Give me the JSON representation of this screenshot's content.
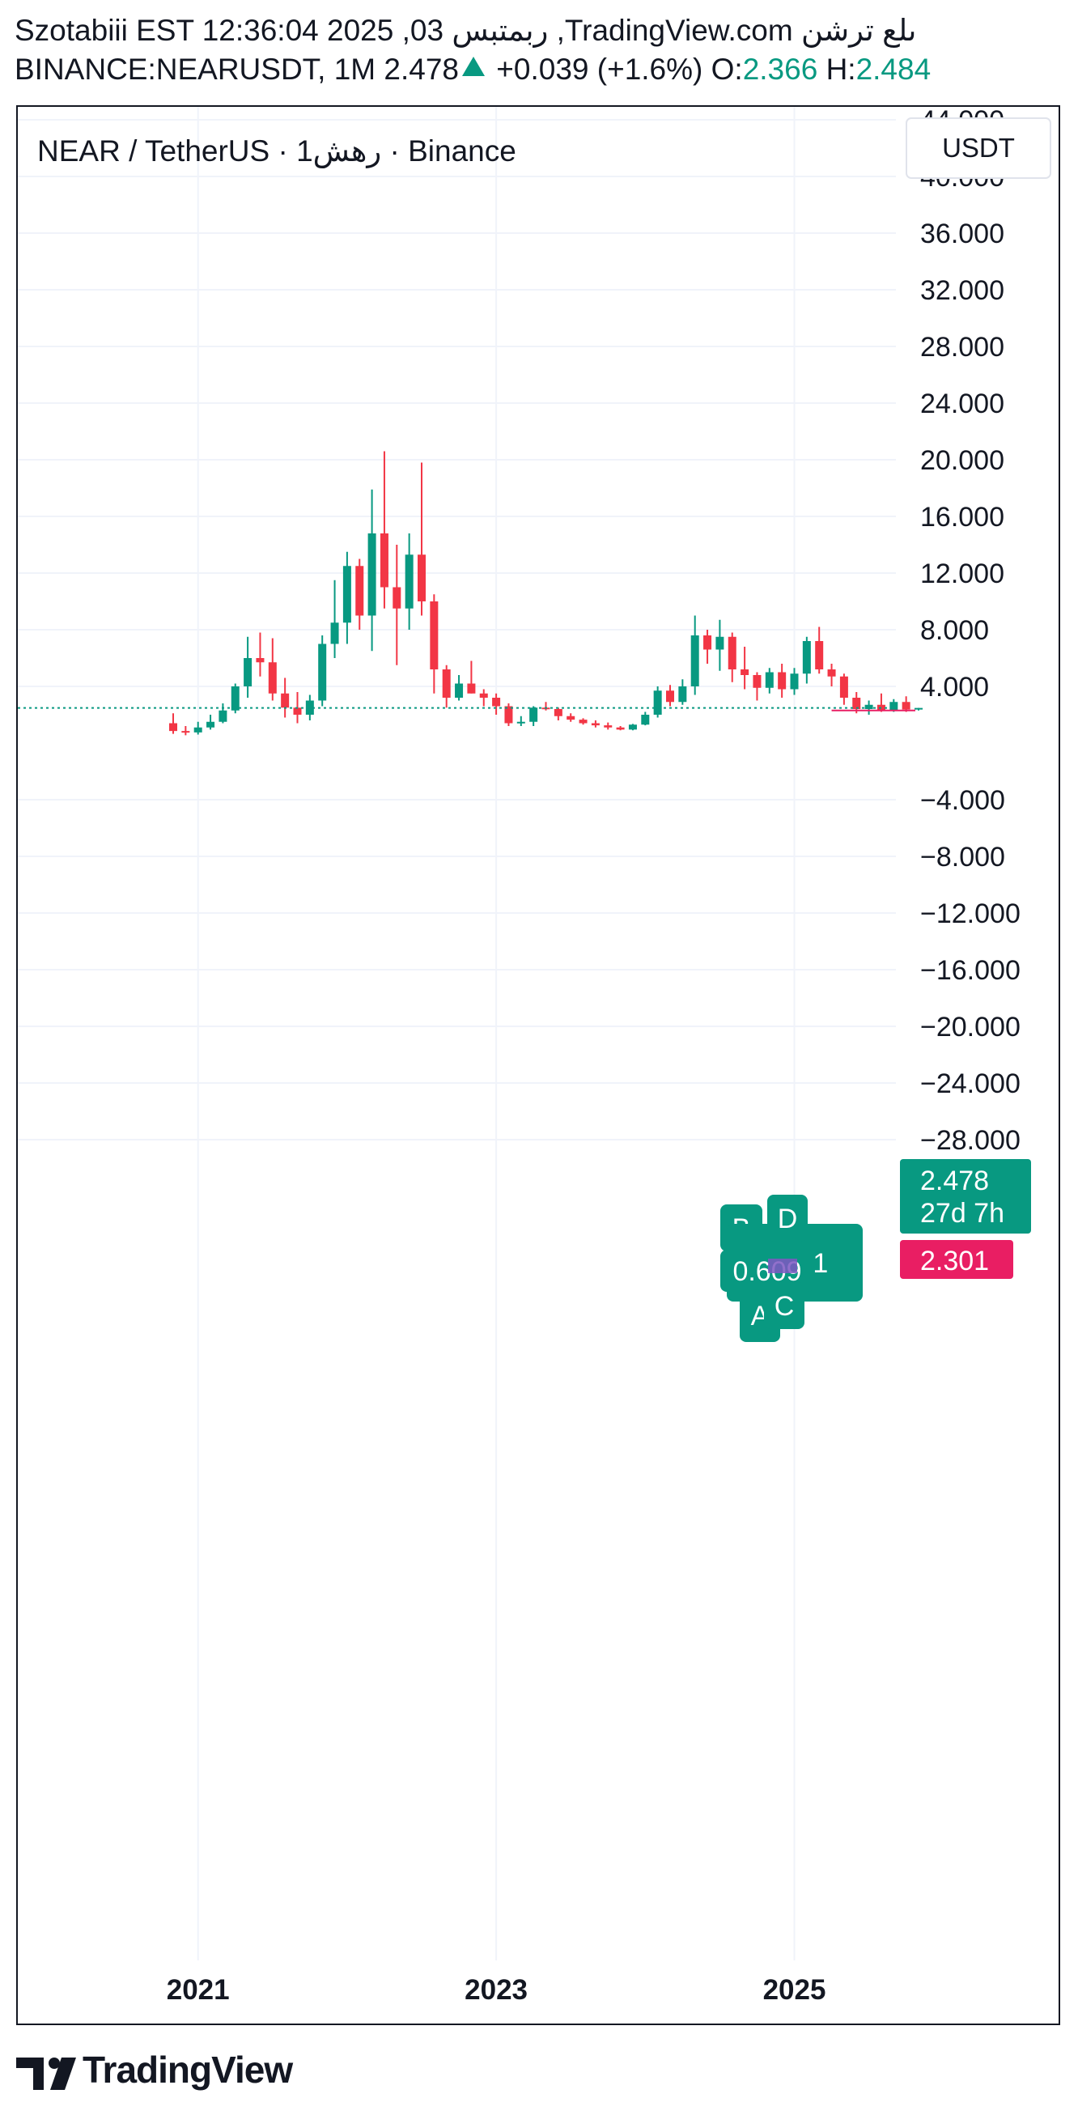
{
  "header": {
    "line1": "Szotabiii EST 12:36:04 2025 ,03 ربمتبس ,TradingView.com ىلع ترشن",
    "symbol": "BINANCE:NEARUSDT, 1M",
    "last": "2.478",
    "change": "+0.039 (+1.6%)",
    "open_label": "O:",
    "open": "2.366",
    "high_label": "H:",
    "high": "2.484"
  },
  "legend": {
    "title": "NEAR / TetherUS · 1رهش · Binance"
  },
  "currency_button": "USDT",
  "footer": {
    "brand": "TradingView"
  },
  "colors": {
    "up": "#089981",
    "down": "#F23645",
    "grid": "#F0F3FA",
    "text": "#131722",
    "pink": "#E91E63"
  },
  "chart_data": {
    "type": "candlestick",
    "y_ticks": [
      "44.000",
      "40.000",
      "36.000",
      "32.000",
      "28.000",
      "24.000",
      "20.000",
      "16.000",
      "12.000",
      "8.000",
      "4.000",
      "−4.000",
      "−8.000",
      "−12.000",
      "−16.000",
      "−20.000",
      "−24.000",
      "−28.000"
    ],
    "y_tick_values": [
      44,
      40,
      36,
      32,
      28,
      24,
      20,
      16,
      12,
      8,
      4,
      -4,
      -8,
      -12,
      -16,
      -20,
      -24,
      -28
    ],
    "x_labels": [
      "2021",
      "2023",
      "2025"
    ],
    "ylim": [
      -30.5,
      45
    ],
    "last_price": {
      "value": "2.478",
      "countdown": "27d 7h"
    },
    "pink_level": {
      "value": "2.301"
    },
    "overlay_labels": {
      "d": "D",
      "value1": "1.911",
      "value2": "0.609",
      "a": "A",
      "c": "C",
      "b": "B"
    },
    "candles": [
      {
        "o": 1.4,
        "h": 2.1,
        "l": 0.65,
        "c": 0.85
      },
      {
        "o": 0.85,
        "h": 1.2,
        "l": 0.55,
        "c": 0.75
      },
      {
        "o": 0.75,
        "h": 1.5,
        "l": 0.6,
        "c": 1.1
      },
      {
        "o": 1.1,
        "h": 2.0,
        "l": 0.95,
        "c": 1.5
      },
      {
        "o": 1.5,
        "h": 2.8,
        "l": 1.4,
        "c": 2.3
      },
      {
        "o": 2.3,
        "h": 4.2,
        "l": 2.1,
        "c": 4.0
      },
      {
        "o": 4.0,
        "h": 7.5,
        "l": 3.2,
        "c": 6.0
      },
      {
        "o": 6.0,
        "h": 7.8,
        "l": 4.7,
        "c": 5.7
      },
      {
        "o": 5.7,
        "h": 7.4,
        "l": 3.0,
        "c": 3.5
      },
      {
        "o": 3.5,
        "h": 4.6,
        "l": 1.8,
        "c": 2.5
      },
      {
        "o": 2.5,
        "h": 3.6,
        "l": 1.4,
        "c": 2.0
      },
      {
        "o": 2.0,
        "h": 3.4,
        "l": 1.6,
        "c": 3.0
      },
      {
        "o": 3.0,
        "h": 7.6,
        "l": 2.6,
        "c": 7.0
      },
      {
        "o": 7.0,
        "h": 11.5,
        "l": 6.0,
        "c": 8.5
      },
      {
        "o": 8.5,
        "h": 13.5,
        "l": 7.0,
        "c": 12.5
      },
      {
        "o": 12.5,
        "h": 13.0,
        "l": 8.0,
        "c": 9.0
      },
      {
        "o": 9.0,
        "h": 17.9,
        "l": 6.5,
        "c": 14.8
      },
      {
        "o": 14.8,
        "h": 20.6,
        "l": 9.5,
        "c": 11.0
      },
      {
        "o": 11.0,
        "h": 14.0,
        "l": 5.5,
        "c": 9.5
      },
      {
        "o": 9.5,
        "h": 14.8,
        "l": 8.0,
        "c": 13.3
      },
      {
        "o": 13.3,
        "h": 19.8,
        "l": 9.0,
        "c": 10.0
      },
      {
        "o": 10.0,
        "h": 10.5,
        "l": 3.5,
        "c": 5.2
      },
      {
        "o": 5.2,
        "h": 5.5,
        "l": 2.5,
        "c": 3.2
      },
      {
        "o": 3.2,
        "h": 4.8,
        "l": 3.0,
        "c": 4.2
      },
      {
        "o": 4.2,
        "h": 5.8,
        "l": 3.5,
        "c": 3.5
      },
      {
        "o": 3.5,
        "h": 3.8,
        "l": 2.6,
        "c": 3.2
      },
      {
        "o": 3.2,
        "h": 3.5,
        "l": 2.0,
        "c": 2.6
      },
      {
        "o": 2.6,
        "h": 2.8,
        "l": 1.2,
        "c": 1.4
      },
      {
        "o": 1.4,
        "h": 1.9,
        "l": 1.2,
        "c": 1.5
      },
      {
        "o": 1.5,
        "h": 2.6,
        "l": 1.2,
        "c": 2.5
      },
      {
        "o": 2.5,
        "h": 2.9,
        "l": 2.3,
        "c": 2.4
      },
      {
        "o": 2.4,
        "h": 2.5,
        "l": 1.6,
        "c": 1.9
      },
      {
        "o": 1.9,
        "h": 2.1,
        "l": 1.5,
        "c": 1.65
      },
      {
        "o": 1.65,
        "h": 1.75,
        "l": 1.3,
        "c": 1.4
      },
      {
        "o": 1.4,
        "h": 1.6,
        "l": 1.1,
        "c": 1.25
      },
      {
        "o": 1.25,
        "h": 1.45,
        "l": 0.95,
        "c": 1.1
      },
      {
        "o": 1.1,
        "h": 1.2,
        "l": 0.9,
        "c": 0.95
      },
      {
        "o": 0.95,
        "h": 1.35,
        "l": 0.9,
        "c": 1.3
      },
      {
        "o": 1.3,
        "h": 2.2,
        "l": 1.25,
        "c": 2.0
      },
      {
        "o": 2.0,
        "h": 4.0,
        "l": 1.8,
        "c": 3.7
      },
      {
        "o": 3.7,
        "h": 4.1,
        "l": 2.6,
        "c": 2.9
      },
      {
        "o": 2.9,
        "h": 4.5,
        "l": 2.7,
        "c": 4.0
      },
      {
        "o": 4.0,
        "h": 9.0,
        "l": 3.4,
        "c": 7.6
      },
      {
        "o": 7.6,
        "h": 8.0,
        "l": 5.6,
        "c": 6.6
      },
      {
        "o": 6.6,
        "h": 8.7,
        "l": 5.1,
        "c": 7.5
      },
      {
        "o": 7.5,
        "h": 7.8,
        "l": 4.3,
        "c": 5.2
      },
      {
        "o": 5.2,
        "h": 6.8,
        "l": 3.8,
        "c": 4.8
      },
      {
        "o": 4.8,
        "h": 5.0,
        "l": 3.0,
        "c": 3.9
      },
      {
        "o": 3.9,
        "h": 5.3,
        "l": 3.5,
        "c": 5.0
      },
      {
        "o": 5.0,
        "h": 5.6,
        "l": 3.2,
        "c": 3.8
      },
      {
        "o": 3.8,
        "h": 5.3,
        "l": 3.4,
        "c": 4.9
      },
      {
        "o": 4.9,
        "h": 7.5,
        "l": 4.2,
        "c": 7.2
      },
      {
        "o": 7.2,
        "h": 8.2,
        "l": 4.9,
        "c": 5.2
      },
      {
        "o": 5.2,
        "h": 5.6,
        "l": 4.0,
        "c": 4.7
      },
      {
        "o": 4.7,
        "h": 4.9,
        "l": 2.7,
        "c": 3.2
      },
      {
        "o": 3.2,
        "h": 3.6,
        "l": 2.1,
        "c": 2.4
      },
      {
        "o": 2.4,
        "h": 3.0,
        "l": 2.0,
        "c": 2.7
      },
      {
        "o": 2.7,
        "h": 3.5,
        "l": 2.2,
        "c": 2.3
      },
      {
        "o": 2.3,
        "h": 3.1,
        "l": 2.2,
        "c": 2.9
      },
      {
        "o": 2.9,
        "h": 3.3,
        "l": 2.2,
        "c": 2.37
      },
      {
        "o": 2.37,
        "h": 2.48,
        "l": 2.3,
        "c": 2.478
      }
    ]
  }
}
